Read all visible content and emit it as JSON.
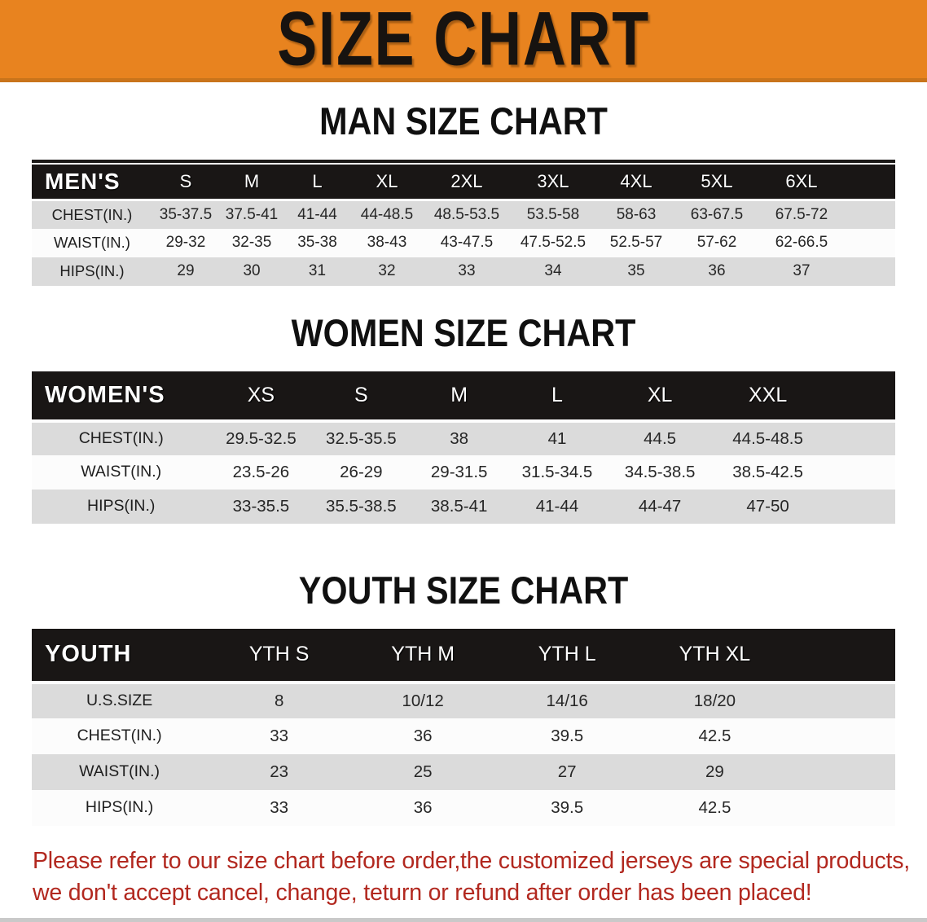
{
  "banner": {
    "title": "SIZE CHART"
  },
  "colors": {
    "accent_orange": "#E8831F",
    "band_black": "#191615",
    "row_gray": "#DBDBDB",
    "disclaimer_red": "#B2281F"
  },
  "sections": [
    {
      "heading": "MAN SIZE CHART",
      "header_label": "MEN'S",
      "columns": [
        "S",
        "M",
        "L",
        "XL",
        "2XL",
        "3XL",
        "4XL",
        "5XL",
        "6XL"
      ],
      "rows": [
        {
          "label": "CHEST(IN.)",
          "values": [
            "35-37.5",
            "37.5-41",
            "41-44",
            "44-48.5",
            "48.5-53.5",
            "53.5-58",
            "58-63",
            "63-67.5",
            "67.5-72"
          ]
        },
        {
          "label": "WAIST(IN.)",
          "values": [
            "29-32",
            "32-35",
            "35-38",
            "38-43",
            "43-47.5",
            "47.5-52.5",
            "52.5-57",
            "57-62",
            "62-66.5"
          ]
        },
        {
          "label": "HIPS(IN.)",
          "values": [
            "29",
            "30",
            "31",
            "32",
            "33",
            "34",
            "35",
            "36",
            "37"
          ]
        }
      ]
    },
    {
      "heading": "WOMEN SIZE CHART",
      "header_label": "WOMEN'S",
      "columns": [
        "XS",
        "S",
        "M",
        "L",
        "XL",
        "XXL"
      ],
      "rows": [
        {
          "label": "CHEST(IN.)",
          "values": [
            "29.5-32.5",
            "32.5-35.5",
            "38",
            "41",
            "44.5",
            "44.5-48.5"
          ]
        },
        {
          "label": "WAIST(IN.)",
          "values": [
            "23.5-26",
            "26-29",
            "29-31.5",
            "31.5-34.5",
            "34.5-38.5",
            "38.5-42.5"
          ]
        },
        {
          "label": "HIPS(IN.)",
          "values": [
            "33-35.5",
            "35.5-38.5",
            "38.5-41",
            "41-44",
            "44-47",
            "47-50"
          ]
        }
      ]
    },
    {
      "heading": "YOUTH SIZE CHART",
      "header_label": "YOUTH",
      "columns": [
        "YTH S",
        "YTH M",
        "YTH L",
        "YTH XL"
      ],
      "rows": [
        {
          "label": "U.S.SIZE",
          "values": [
            "8",
            "10/12",
            "14/16",
            "18/20"
          ]
        },
        {
          "label": "CHEST(IN.)",
          "values": [
            "33",
            "36",
            "39.5",
            "42.5"
          ]
        },
        {
          "label": "WAIST(IN.)",
          "values": [
            "23",
            "25",
            "27",
            "29"
          ]
        },
        {
          "label": "HIPS(IN.)",
          "values": [
            "33",
            "36",
            "39.5",
            "42.5"
          ]
        }
      ]
    }
  ],
  "disclaimer": {
    "lines": [
      "Please refer to our size chart before order,the customized jerseys are special products,",
      "we don't accept cancel, change, teturn or refund after order has been placed!"
    ]
  }
}
